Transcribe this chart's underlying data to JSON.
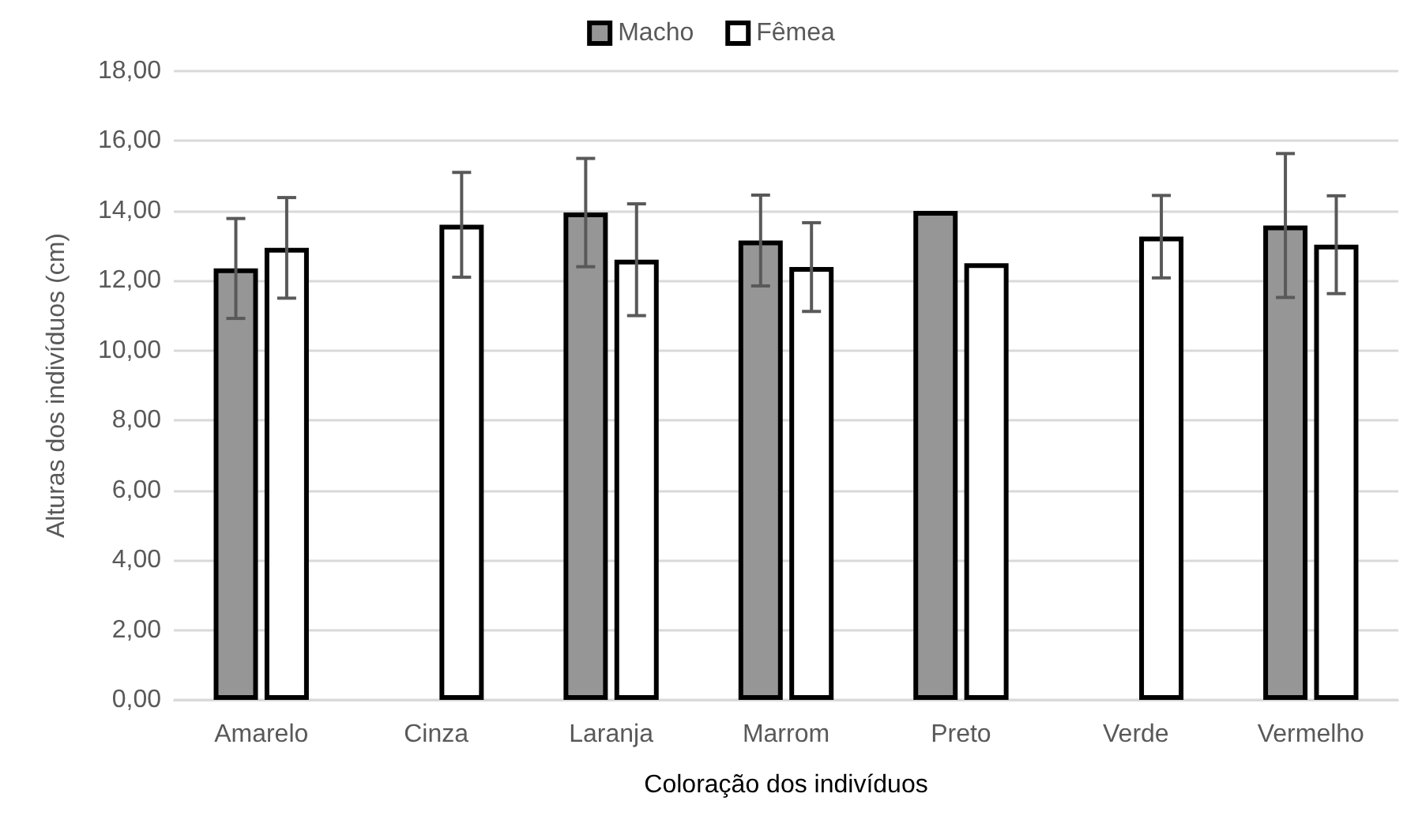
{
  "chart_data": {
    "type": "bar",
    "xlabel": "Coloração dos indivíduos",
    "ylabel": "Alturas dos indivíduos (cm)",
    "categories": [
      "Amarelo",
      "Cinza",
      "Laranja",
      "Marrom",
      "Preto",
      "Verde",
      "Vermelho"
    ],
    "series": [
      {
        "name": "Macho",
        "color": "#969696",
        "values": [
          12.35,
          0,
          13.95,
          13.15,
          14.0,
          0,
          13.58
        ],
        "errors": [
          1.43,
          null,
          1.55,
          1.3,
          null,
          null,
          2.06
        ]
      },
      {
        "name": "Fêmea",
        "color": "#ffffff",
        "values": [
          12.94,
          13.6,
          12.6,
          12.39,
          12.5,
          13.26,
          13.03
        ],
        "errors": [
          1.44,
          1.5,
          1.6,
          1.27,
          null,
          1.18,
          1.4
        ]
      }
    ],
    "ylim": [
      0,
      18
    ],
    "yticks": [
      {
        "value": 0,
        "label": "0,00"
      },
      {
        "value": 2,
        "label": "2,00"
      },
      {
        "value": 4,
        "label": "4,00"
      },
      {
        "value": 6,
        "label": "6,00"
      },
      {
        "value": 8,
        "label": "8,00"
      },
      {
        "value": 10,
        "label": "10,00"
      },
      {
        "value": 12,
        "label": "12,00"
      },
      {
        "value": 14,
        "label": "14,00"
      },
      {
        "value": 16,
        "label": "16,00"
      },
      {
        "value": 18,
        "label": "18,00"
      }
    ],
    "grid": "y",
    "legend": "top"
  }
}
